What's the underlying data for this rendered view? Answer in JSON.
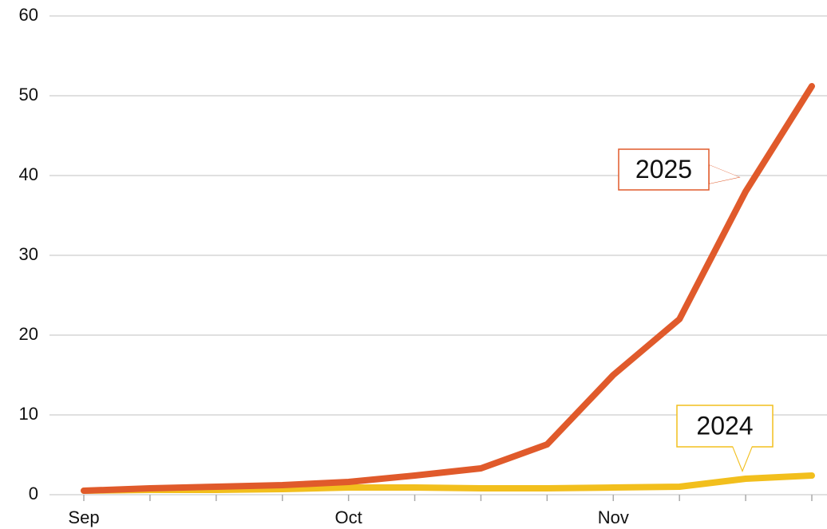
{
  "chart_data": {
    "type": "line",
    "categories": [
      "Sep",
      null,
      null,
      null,
      "Oct",
      null,
      null,
      null,
      "Nov",
      null,
      null,
      null
    ],
    "series": [
      {
        "name": "2025",
        "color": "#e05a2b",
        "values": [
          0.5,
          0.8,
          1.0,
          1.2,
          1.6,
          2.4,
          3.3,
          6.3,
          15,
          22,
          38,
          51.2
        ]
      },
      {
        "name": "2024",
        "color": "#f2bf1d",
        "values": [
          0.5,
          0.6,
          0.6,
          0.7,
          0.9,
          0.9,
          0.8,
          0.8,
          0.9,
          1.0,
          2.0,
          2.4
        ]
      }
    ],
    "ylim": [
      0,
      60
    ],
    "yticks": [
      0,
      10,
      20,
      30,
      40,
      50,
      60
    ],
    "grid": true
  }
}
